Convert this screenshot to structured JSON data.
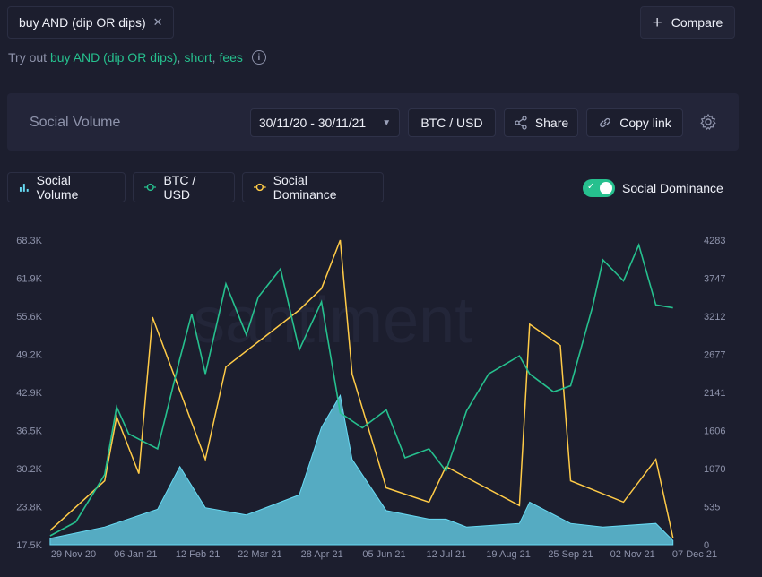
{
  "search": {
    "query": "buy AND (dip OR dips)",
    "close_icon": "close-icon"
  },
  "compare": {
    "label": "Compare"
  },
  "hint": {
    "prefix": "Try out",
    "suggestions": [
      "buy AND (dip OR dips)",
      "short",
      "fees"
    ]
  },
  "toolbar": {
    "title": "Social Volume",
    "date_range": "30/11/20 - 30/11/21",
    "asset": "BTC / USD",
    "share": "Share",
    "copy_link": "Copy link"
  },
  "legend": {
    "items": [
      {
        "label": "Social Volume",
        "icon": "bar-chart-icon",
        "color": "#68dbf4"
      },
      {
        "label": "BTC / USD",
        "icon": "circle-icon",
        "color": "#26c08e"
      },
      {
        "label": "Social Dominance",
        "icon": "circle-icon",
        "color": "#ffcb47"
      }
    ],
    "toggle_label": "Social Dominance",
    "toggle_on": true
  },
  "colors": {
    "accent": "#26c08e",
    "volume": "#68dbf4",
    "dominance": "#ffcb47",
    "price": "#26c08e"
  },
  "chart_data": {
    "type": "line",
    "watermark": "santiment",
    "x_ticks": [
      "29 Nov 20",
      "06 Jan 21",
      "12 Feb 21",
      "22 Mar 21",
      "28 Apr 21",
      "05 Jun 21",
      "12 Jul 21",
      "19 Aug 21",
      "25 Sep 21",
      "02 Nov 21",
      "07 Dec 21"
    ],
    "y_left_ticks": [
      "68.3K",
      "61.9K",
      "55.6K",
      "49.2K",
      "42.9K",
      "36.5K",
      "30.2K",
      "23.8K",
      "17.5K"
    ],
    "y_right_ticks": [
      "4283",
      "3747",
      "3212",
      "2677",
      "2141",
      "1606",
      "1070",
      "535",
      "0"
    ],
    "y_left_range": [
      17500,
      68300
    ],
    "y_right_range": [
      0,
      4283
    ],
    "series": [
      {
        "name": "BTC / USD",
        "axis": "left",
        "x": [
          "30/11/20",
          "15/12/20",
          "01/01/21",
          "08/01/21",
          "15/01/21",
          "01/02/21",
          "14/02/21",
          "21/02/21",
          "01/03/21",
          "13/03/21",
          "25/03/21",
          "01/04/21",
          "14/04/21",
          "25/04/21",
          "08/05/21",
          "19/05/21",
          "01/06/21",
          "15/06/21",
          "26/06/21",
          "10/07/21",
          "20/07/21",
          "01/08/21",
          "14/08/21",
          "01/09/21",
          "07/09/21",
          "21/09/21",
          "01/10/21",
          "14/10/21",
          "20/10/21",
          "01/11/21",
          "10/11/21",
          "20/11/21",
          "30/11/21"
        ],
        "values": [
          19000,
          21300,
          29200,
          40500,
          36000,
          33500,
          48500,
          56000,
          46000,
          61000,
          52500,
          58800,
          63500,
          50000,
          58000,
          39500,
          37000,
          40000,
          32000,
          33500,
          29800,
          39800,
          46000,
          49000,
          46000,
          43000,
          44000,
          57300,
          65000,
          61500,
          67500,
          57500,
          57000
        ]
      },
      {
        "name": "Social Volume",
        "axis": "right",
        "x": [
          "30/11/20",
          "01/01/21",
          "01/02/21",
          "14/02/21",
          "01/03/21",
          "25/03/21",
          "01/04/21",
          "25/04/21",
          "08/05/21",
          "19/05/21",
          "26/05/21",
          "15/06/21",
          "10/07/21",
          "20/07/21",
          "01/08/21",
          "01/09/21",
          "07/09/21",
          "01/10/21",
          "20/10/21",
          "20/11/21",
          "30/11/21"
        ],
        "values": [
          90,
          250,
          500,
          1100,
          520,
          420,
          480,
          700,
          1650,
          2100,
          1200,
          480,
          360,
          360,
          250,
          300,
          600,
          300,
          250,
          300,
          60
        ]
      },
      {
        "name": "Social Dominance",
        "axis": "right",
        "x": [
          "30/11/20",
          "01/01/21",
          "08/01/21",
          "21/01/21",
          "29/01/21",
          "01/03/21",
          "13/03/21",
          "25/04/21",
          "08/05/21",
          "19/05/21",
          "26/05/21",
          "15/06/21",
          "10/07/21",
          "20/07/21",
          "01/09/21",
          "07/09/21",
          "25/09/21",
          "01/10/21",
          "01/11/21",
          "20/11/21",
          "30/11/21"
        ],
        "values": [
          200,
          900,
          1800,
          1000,
          3200,
          1200,
          2500,
          3300,
          3600,
          4283,
          2400,
          800,
          600,
          1100,
          550,
          3100,
          2800,
          900,
          600,
          1200,
          100
        ]
      }
    ]
  }
}
